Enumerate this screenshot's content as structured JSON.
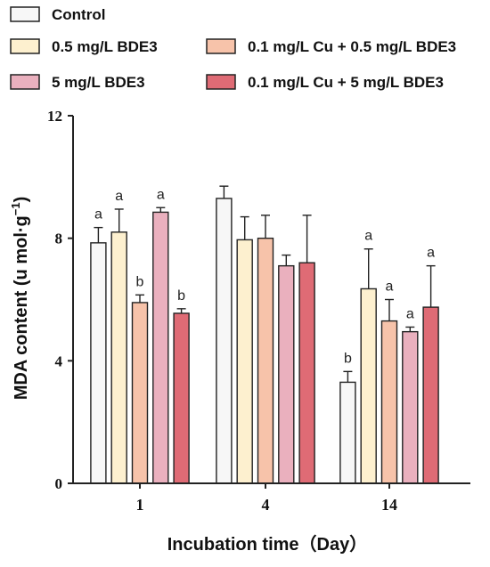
{
  "chart_data": {
    "type": "bar",
    "title": "",
    "xlabel": "Incubation time（Day）",
    "ylabel": "MDA content (u mol·g",
    "ylabel_sup": "−1",
    "ylabel_close": ")",
    "categories": [
      "1",
      "4",
      "14"
    ],
    "ylim": [
      0,
      12
    ],
    "yticks": [
      "0",
      "4",
      "8",
      "12"
    ],
    "ytick_values": [
      0,
      4,
      8,
      12
    ],
    "legend_placement": "top",
    "series": [
      {
        "name": "Control",
        "color": "#f7f7f7",
        "values": [
          7.85,
          9.3,
          3.3
        ],
        "errors": [
          0.5,
          0.4,
          0.35
        ],
        "labels": [
          "a",
          "",
          "b"
        ]
      },
      {
        "name": "0.5 mg/L BDE3",
        "color": "#fdf0cf",
        "values": [
          8.2,
          7.95,
          6.35
        ],
        "errors": [
          0.75,
          0.75,
          1.3
        ],
        "labels": [
          "a",
          "",
          "a"
        ]
      },
      {
        "name": "0.1 mg/L Cu + 0.5 mg/L BDE3",
        "color": "#f7c3aa",
        "values": [
          5.9,
          8.0,
          5.3
        ],
        "errors": [
          0.25,
          0.75,
          0.7
        ],
        "labels": [
          "b",
          "",
          "a"
        ]
      },
      {
        "name": "5 mg/L BDE3",
        "color": "#eab0be",
        "values": [
          8.85,
          7.1,
          4.95
        ],
        "errors": [
          0.15,
          0.35,
          0.15
        ],
        "labels": [
          "a",
          "",
          "a"
        ]
      },
      {
        "name": "0.1 mg/L Cu + 5 mg/L BDE3",
        "color": "#df6b75",
        "values": [
          5.55,
          7.2,
          5.75
        ],
        "errors": [
          0.15,
          1.55,
          1.35
        ],
        "labels": [
          "b",
          "",
          "a"
        ]
      }
    ],
    "grid": false
  }
}
